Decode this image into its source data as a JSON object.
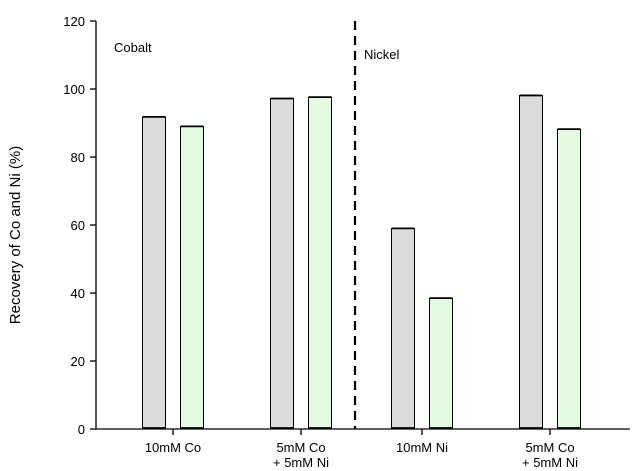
{
  "chart_data": {
    "type": "bar",
    "ylabel": "Recovery of Co and Ni (%)",
    "xlabel": "",
    "ylim": [
      0,
      120
    ],
    "yticks": [
      0,
      20,
      40,
      60,
      80,
      100,
      120
    ],
    "grid": false,
    "legend": "none",
    "categories": [
      [
        "10mM Co"
      ],
      [
        "5mM Co",
        "+ 5mM Ni"
      ],
      [
        "10mM Ni"
      ],
      [
        "5mM Co",
        "+ 5mM Ni"
      ]
    ],
    "series": [
      {
        "color": "#dcdcdc",
        "values": [
          91.8,
          97.2,
          59.0,
          98.1
        ]
      },
      {
        "color": "#e3fbe3",
        "values": [
          89.0,
          97.6,
          38.5,
          88.2
        ]
      }
    ],
    "annotations": [
      "Cobalt",
      "Nickel"
    ],
    "divider_after_category": 1
  }
}
